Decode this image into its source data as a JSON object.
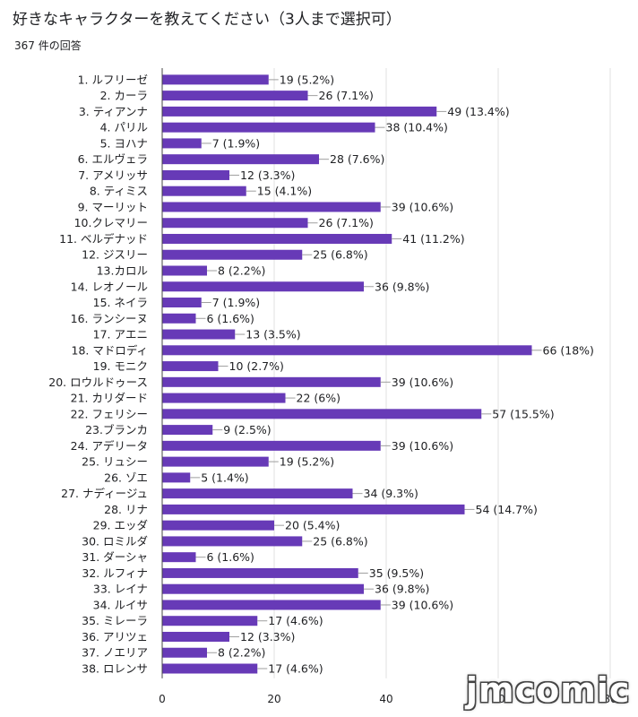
{
  "header": {
    "title": "好きなキャラクターを教えてください（3人まで選択可）",
    "response_count": "367 件の回答"
  },
  "watermark": "jmcomic",
  "colors": {
    "bar": "#673ab7",
    "grid": "#e0e0e0",
    "axis": "#444444",
    "label": "#202124"
  },
  "chart_data": {
    "type": "bar",
    "orientation": "horizontal",
    "categories": [
      "1. ルフリーゼ",
      "2. カーラ",
      "3. ティアンナ",
      "4. パリル",
      "5. ヨハナ",
      "6. エルヴェラ",
      "7. アメリッサ",
      "8. ティミス",
      "9. マーリット",
      "10.クレマリー",
      "11. ベルデナッド",
      "12. ジスリー",
      "13.カロル",
      "14. レオノール",
      "15. ネイラ",
      "16. ランシーヌ",
      "17. アエニ",
      "18. マドロディ",
      "19. モニク",
      "20. ロウルドゥース",
      "21. カリダード",
      "22. フェリシー",
      "23.ブランカ",
      "24. アデリータ",
      "25. リュシー",
      "26. ゾエ",
      "27. ナディージュ",
      "28. リナ",
      "29. エッダ",
      "30. ロミルダ",
      "31. ダーシャ",
      "32. ルフィナ",
      "33. レイナ",
      "34. ルイサ",
      "35. ミレーラ",
      "36. アリツェ",
      "37. ノエリア",
      "38. ロレンサ"
    ],
    "values": [
      19,
      26,
      49,
      38,
      7,
      28,
      12,
      15,
      39,
      26,
      41,
      25,
      8,
      36,
      7,
      6,
      13,
      66,
      10,
      39,
      22,
      57,
      9,
      39,
      19,
      5,
      34,
      54,
      20,
      25,
      6,
      35,
      36,
      39,
      17,
      12,
      8,
      17
    ],
    "data_labels": [
      "19 (5.2%)",
      "26 (7.1%)",
      "49 (13.4%)",
      "38 (10.4%)",
      "7 (1.9%)",
      "28 (7.6%)",
      "12 (3.3%)",
      "15 (4.1%)",
      "39 (10.6%)",
      "26 (7.1%)",
      "41 (11.2%)",
      "25 (6.8%)",
      "8 (2.2%)",
      "36 (9.8%)",
      "7 (1.9%)",
      "6 (1.6%)",
      "13 (3.5%)",
      "66 (18%)",
      "10 (2.7%)",
      "39 (10.6%)",
      "22 (6%)",
      "57 (15.5%)",
      "9 (2.5%)",
      "39 (10.6%)",
      "19 (5.2%)",
      "5 (1.4%)",
      "34 (9.3%)",
      "54 (14.7%)",
      "20 (5.4%)",
      "25 (6.8%)",
      "6 (1.6%)",
      "35 (9.5%)",
      "36 (9.8%)",
      "39 (10.6%)",
      "17 (4.6%)",
      "12 (3.3%)",
      "8 (2.2%)",
      "17 (4.6%)"
    ],
    "xlim": [
      0,
      80
    ],
    "xticks": [
      0,
      20,
      40,
      60,
      80
    ],
    "grid": true
  }
}
